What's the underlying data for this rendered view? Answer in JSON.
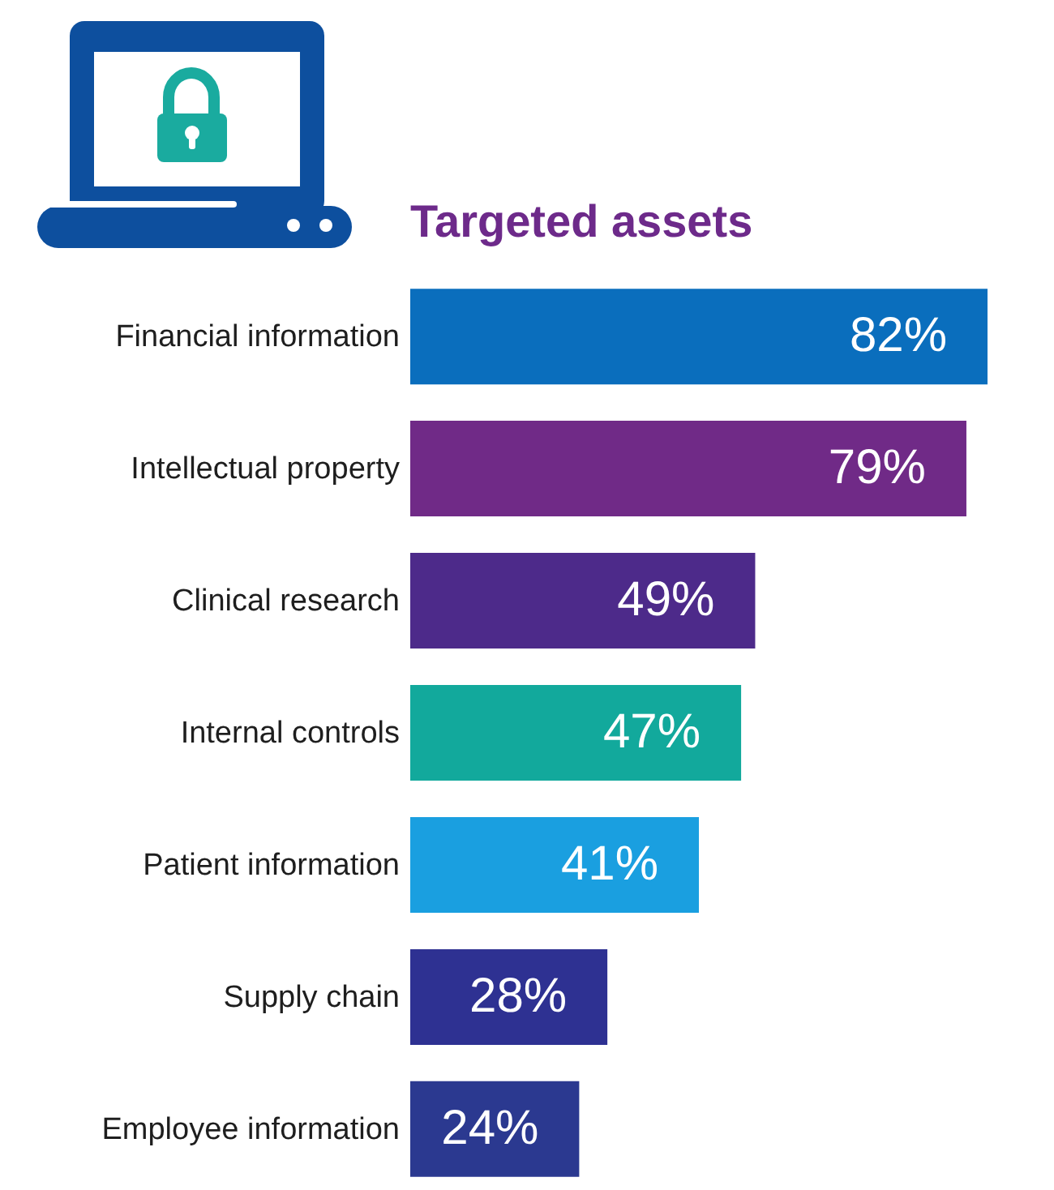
{
  "chart_data": {
    "type": "bar",
    "orientation": "horizontal",
    "title": "Targeted assets",
    "categories": [
      "Financial information",
      "Intellectual property",
      "Clinical research",
      "Internal controls",
      "Patient information",
      "Supply chain",
      "Employee information"
    ],
    "values": [
      82,
      79,
      49,
      47,
      41,
      28,
      24
    ],
    "value_labels": [
      "82%",
      "79%",
      "49%",
      "47%",
      "41%",
      "28%",
      "24%"
    ],
    "colors": [
      "#0a6ebd",
      "#702a87",
      "#4d2a8a",
      "#12a99c",
      "#1a9fe0",
      "#2e3192",
      "#2b3990"
    ],
    "tick_labels": "y"
  }
}
